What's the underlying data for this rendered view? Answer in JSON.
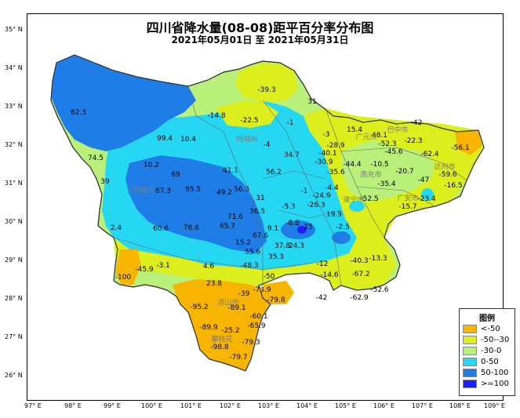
{
  "title": "四川省降水量(08-08)距平百分率分布图",
  "subtitle": "2021年05月01日 至 2021年05月31日",
  "lat_labels": [
    "35° N",
    "34° N",
    "33° N",
    "32° N",
    "31° N",
    "30° N",
    "29° N",
    "28° N",
    "27° N",
    "26° N"
  ],
  "lon_labels": [
    "97° E",
    "98° E",
    "99° E",
    "100° E",
    "101° E",
    "102° E",
    "103° E",
    "104° E",
    "105° E",
    "106° E",
    "107° E",
    "108° E",
    "109° E"
  ],
  "legend": {
    "title": "图例",
    "items": [
      {
        "label": "<-50",
        "color": "#f7b500"
      },
      {
        "label": "-50--30",
        "color": "#dcef1c"
      },
      {
        "label": "-30-0",
        "color": "#b9f07a"
      },
      {
        "label": "0-50",
        "color": "#25d7f2"
      },
      {
        "label": "50-100",
        "color": "#1e7de6"
      },
      {
        "label": ">=100",
        "color": "#2020ff"
      }
    ]
  },
  "station_values": [
    {
      "text": "62.3"
    },
    {
      "text": "74.5"
    },
    {
      "text": "99.4"
    },
    {
      "text": "10.4"
    },
    {
      "text": "-14.8"
    },
    {
      "text": "-22.5"
    },
    {
      "text": "-39.3"
    },
    {
      "text": "31"
    },
    {
      "text": "-1"
    },
    {
      "text": "-4"
    },
    {
      "text": "10.2"
    },
    {
      "text": "69"
    },
    {
      "text": "67.3"
    },
    {
      "text": "95.5"
    },
    {
      "text": "41.1"
    },
    {
      "text": "49.2"
    },
    {
      "text": "56.3"
    },
    {
      "text": "56.2"
    },
    {
      "text": "34.7"
    },
    {
      "text": "39"
    },
    {
      "text": "2.4"
    },
    {
      "text": "60.6"
    },
    {
      "text": "76.6"
    },
    {
      "text": "71.6"
    },
    {
      "text": "65.7"
    },
    {
      "text": "31"
    },
    {
      "text": "36.5"
    },
    {
      "text": "-5.3"
    },
    {
      "text": "-1"
    },
    {
      "text": "-26.3"
    },
    {
      "text": "15.2"
    },
    {
      "text": "67.6"
    },
    {
      "text": "9.1"
    },
    {
      "text": "25"
    },
    {
      "text": "55.6"
    },
    {
      "text": "35.3"
    },
    {
      "text": "37.8"
    },
    {
      "text": "24.3"
    },
    {
      "text": "-8.8"
    },
    {
      "text": "-3.1"
    },
    {
      "text": "4.6"
    },
    {
      "text": "-48.3"
    },
    {
      "text": "-45.9"
    },
    {
      "text": "-100"
    },
    {
      "text": "-50"
    },
    {
      "text": "23.8"
    },
    {
      "text": "-39"
    },
    {
      "text": "-73.9"
    },
    {
      "text": "-79.8"
    },
    {
      "text": "-95.2"
    },
    {
      "text": "-89.1"
    },
    {
      "text": "-60.1"
    },
    {
      "text": "-65.9"
    },
    {
      "text": "-89.9"
    },
    {
      "text": "-25.2"
    },
    {
      "text": "-79.3"
    },
    {
      "text": "-98.8"
    },
    {
      "text": "-79.7"
    },
    {
      "text": "-3"
    },
    {
      "text": "-28.9"
    },
    {
      "text": "-40.1"
    },
    {
      "text": "-30.9"
    },
    {
      "text": "-44.4"
    },
    {
      "text": "-35.6"
    },
    {
      "text": "15.4"
    },
    {
      "text": "48.1"
    },
    {
      "text": "-52.3"
    },
    {
      "text": "-42"
    },
    {
      "text": "-45.6"
    },
    {
      "text": "-22.3"
    },
    {
      "text": "-62.4"
    },
    {
      "text": "-56.1"
    },
    {
      "text": "-20.7"
    },
    {
      "text": "-10.5"
    },
    {
      "text": "-35.4"
    },
    {
      "text": "-47"
    },
    {
      "text": "-59.6"
    },
    {
      "text": "-16.5"
    },
    {
      "text": "-15.7"
    },
    {
      "text": "-23.4"
    },
    {
      "text": "-24.9"
    },
    {
      "text": "-4.4"
    },
    {
      "text": "19.9"
    },
    {
      "text": "-52.5"
    },
    {
      "text": "-2.5"
    },
    {
      "text": "-12"
    },
    {
      "text": "-14.6"
    },
    {
      "text": "-40.3"
    },
    {
      "text": "-13.3"
    },
    {
      "text": "-67.2"
    },
    {
      "text": "-52.6"
    },
    {
      "text": "-42"
    },
    {
      "text": "-62.9"
    }
  ],
  "city_labels": [
    {
      "text": "阿坝州"
    },
    {
      "text": "甘孜藏族"
    },
    {
      "text": "凉山州"
    },
    {
      "text": "攀枝花"
    },
    {
      "text": "广元市"
    },
    {
      "text": "达州市"
    },
    {
      "text": "遂宁市"
    },
    {
      "text": "广安市"
    },
    {
      "text": "巴中市"
    },
    {
      "text": "南充市"
    }
  ]
}
